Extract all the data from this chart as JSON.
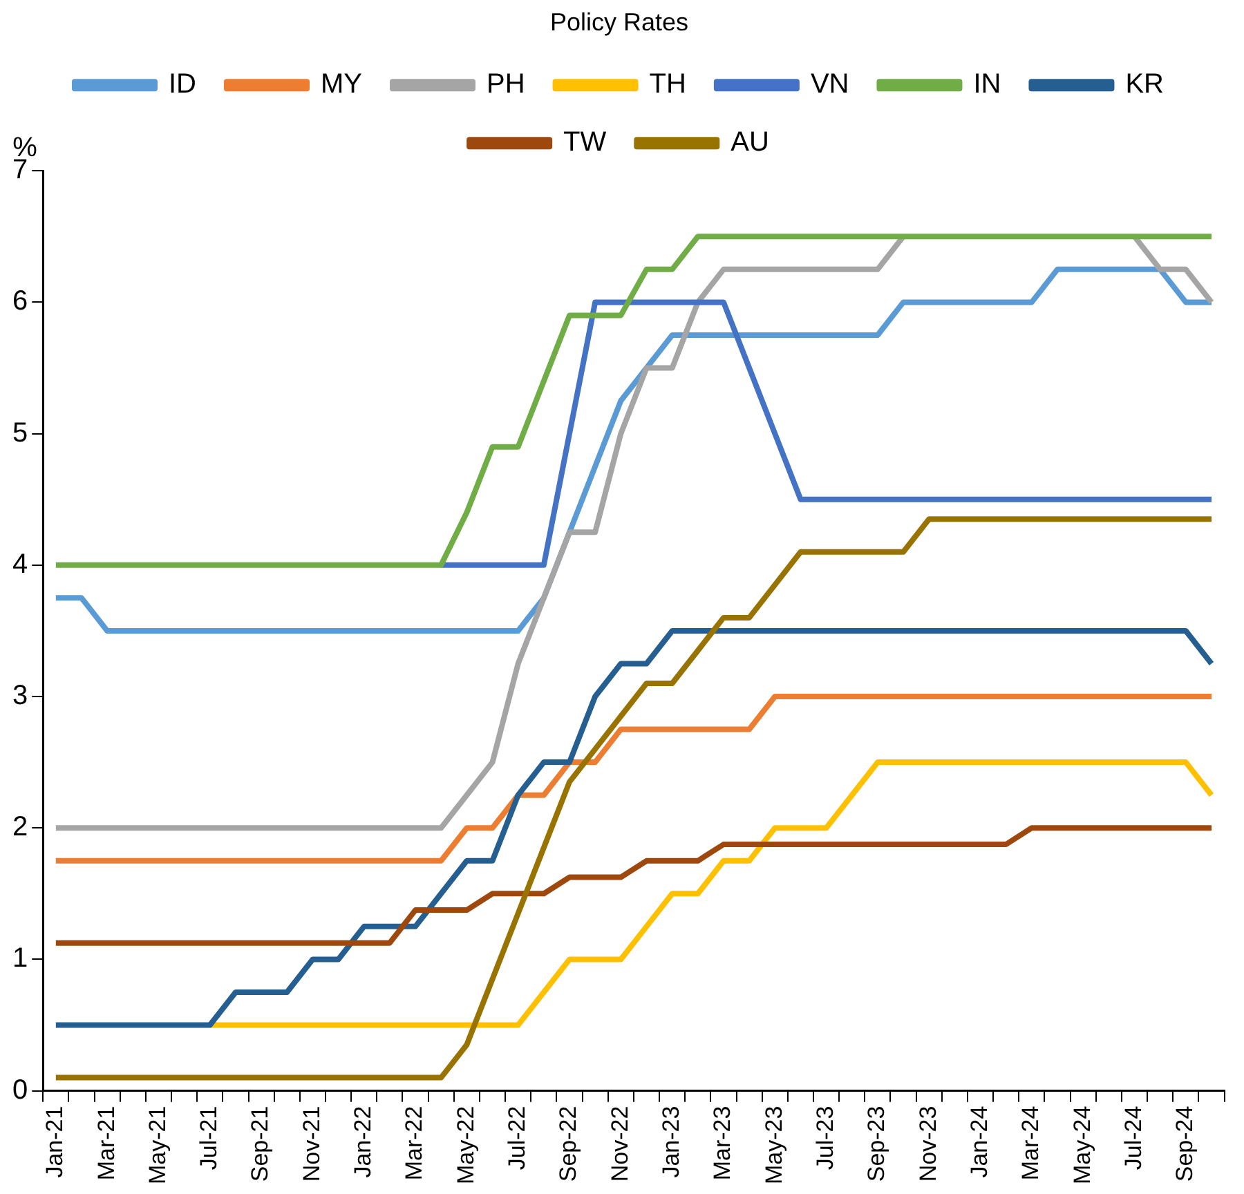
{
  "chart_data": {
    "type": "line",
    "title": "Policy Rates",
    "ylabel": "%",
    "categories": [
      "Jan-21",
      null,
      "Mar-21",
      null,
      "May-21",
      null,
      "Jul-21",
      null,
      "Sep-21",
      null,
      "Nov-21",
      null,
      "Jan-22",
      null,
      "Mar-22",
      null,
      "May-22",
      null,
      "Jul-22",
      null,
      "Sep-22",
      null,
      "Nov-22",
      null,
      "Jan-23",
      null,
      "Mar-23",
      null,
      "May-23",
      null,
      "Jul-23",
      null,
      "Sep-23",
      null,
      "Nov-23",
      null,
      "Jan-24",
      null,
      "Mar-24",
      null,
      "May-24",
      null,
      "Jul-24",
      null,
      "Sep-24",
      null
    ],
    "ylim": [
      0,
      7
    ],
    "yticks": [
      0,
      1,
      2,
      3,
      4,
      5,
      6,
      7
    ],
    "legend": "top",
    "marker": "none",
    "line_style": "solid",
    "series": [
      {
        "name": "ID",
        "color": "#5b9bd5",
        "values": [
          3.75,
          3.75,
          3.5,
          3.5,
          3.5,
          3.5,
          3.5,
          3.5,
          3.5,
          3.5,
          3.5,
          3.5,
          3.5,
          3.5,
          3.5,
          3.5,
          3.5,
          3.5,
          3.5,
          3.75,
          4.25,
          4.75,
          5.25,
          5.5,
          5.75,
          5.75,
          5.75,
          5.75,
          5.75,
          5.75,
          5.75,
          5.75,
          5.75,
          6,
          6,
          6,
          6,
          6,
          6,
          6.25,
          6.25,
          6.25,
          6.25,
          6.25,
          6,
          6
        ]
      },
      {
        "name": "MY",
        "color": "#ed7d31",
        "values": [
          1.75,
          1.75,
          1.75,
          1.75,
          1.75,
          1.75,
          1.75,
          1.75,
          1.75,
          1.75,
          1.75,
          1.75,
          1.75,
          1.75,
          1.75,
          1.75,
          2,
          2,
          2.25,
          2.25,
          2.5,
          2.5,
          2.75,
          2.75,
          2.75,
          2.75,
          2.75,
          2.75,
          3,
          3,
          3,
          3,
          3,
          3,
          3,
          3,
          3,
          3,
          3,
          3,
          3,
          3,
          3,
          3,
          3,
          3
        ]
      },
      {
        "name": "PH",
        "color": "#a5a5a5",
        "values": [
          2,
          2,
          2,
          2,
          2,
          2,
          2,
          2,
          2,
          2,
          2,
          2,
          2,
          2,
          2,
          2,
          2.25,
          2.5,
          3.25,
          3.75,
          4.25,
          4.25,
          5,
          5.5,
          5.5,
          6,
          6.25,
          6.25,
          6.25,
          6.25,
          6.25,
          6.25,
          6.25,
          6.5,
          null,
          null,
          null,
          null,
          null,
          null,
          null,
          null,
          6.5,
          6.25,
          6.25,
          6
        ]
      },
      {
        "name": "TH",
        "color": "#ffc000",
        "values": [
          null,
          null,
          null,
          null,
          null,
          null,
          0.5,
          0.5,
          0.5,
          0.5,
          0.5,
          0.5,
          0.5,
          0.5,
          0.5,
          0.5,
          0.5,
          0.5,
          0.5,
          0.75,
          1,
          1,
          1,
          1.25,
          1.5,
          1.5,
          1.75,
          1.75,
          2,
          2,
          2,
          2.25,
          2.5,
          2.5,
          2.5,
          2.5,
          2.5,
          2.5,
          2.5,
          2.5,
          2.5,
          2.5,
          2.5,
          2.5,
          2.5,
          2.25
        ]
      },
      {
        "name": "VN",
        "color": "#4472c4",
        "values": [
          null,
          null,
          null,
          null,
          null,
          null,
          null,
          null,
          null,
          null,
          null,
          null,
          null,
          null,
          null,
          4,
          4,
          4,
          4,
          4,
          5,
          6,
          6,
          6,
          6,
          6,
          6,
          5.5,
          5,
          4.5,
          4.5,
          4.5,
          4.5,
          4.5,
          4.5,
          4.5,
          4.5,
          4.5,
          4.5,
          4.5,
          4.5,
          4.5,
          4.5,
          4.5,
          4.5,
          4.5
        ]
      },
      {
        "name": "IN",
        "color": "#70ad47",
        "values": [
          4,
          4,
          4,
          4,
          4,
          4,
          4,
          4,
          4,
          4,
          4,
          4,
          4,
          4,
          4,
          4,
          4.4,
          4.9,
          4.9,
          5.4,
          5.9,
          5.9,
          5.9,
          6.25,
          6.25,
          6.5,
          6.5,
          6.5,
          6.5,
          6.5,
          6.5,
          6.5,
          6.5,
          6.5,
          6.5,
          6.5,
          6.5,
          6.5,
          6.5,
          6.5,
          6.5,
          6.5,
          6.5,
          6.5,
          6.5,
          6.5
        ]
      },
      {
        "name": "KR",
        "color": "#255e91",
        "values": [
          0.5,
          0.5,
          0.5,
          0.5,
          0.5,
          0.5,
          0.5,
          0.75,
          0.75,
          0.75,
          1,
          1,
          1.25,
          1.25,
          1.25,
          1.5,
          1.75,
          1.75,
          2.25,
          2.5,
          2.5,
          3,
          3.25,
          3.25,
          3.5,
          3.5,
          3.5,
          3.5,
          3.5,
          3.5,
          3.5,
          3.5,
          3.5,
          3.5,
          3.5,
          3.5,
          3.5,
          3.5,
          3.5,
          3.5,
          3.5,
          3.5,
          3.5,
          3.5,
          3.5,
          3.25
        ]
      },
      {
        "name": "TW",
        "color": "#9e480e",
        "values": [
          1.125,
          1.125,
          1.125,
          1.125,
          1.125,
          1.125,
          1.125,
          1.125,
          1.125,
          1.125,
          1.125,
          1.125,
          1.125,
          1.125,
          1.375,
          1.375,
          1.375,
          1.5,
          1.5,
          1.5,
          1.625,
          1.625,
          1.625,
          1.75,
          1.75,
          1.75,
          1.875,
          1.875,
          1.875,
          1.875,
          1.875,
          1.875,
          1.875,
          1.875,
          1.875,
          1.875,
          1.875,
          1.875,
          2,
          2,
          2,
          2,
          2,
          2,
          2,
          2
        ]
      },
      {
        "name": "AU",
        "color": "#997300",
        "values": [
          0.1,
          0.1,
          0.1,
          0.1,
          0.1,
          0.1,
          0.1,
          0.1,
          0.1,
          0.1,
          0.1,
          0.1,
          0.1,
          0.1,
          0.1,
          0.1,
          0.35,
          0.85,
          1.35,
          1.85,
          2.35,
          2.6,
          2.85,
          3.1,
          3.1,
          3.35,
          3.6,
          3.6,
          3.85,
          4.1,
          4.1,
          4.1,
          4.1,
          4.1,
          4.35,
          4.35,
          4.35,
          4.35,
          4.35,
          4.35,
          4.35,
          4.35,
          4.35,
          4.35,
          4.35,
          4.35
        ]
      }
    ]
  }
}
